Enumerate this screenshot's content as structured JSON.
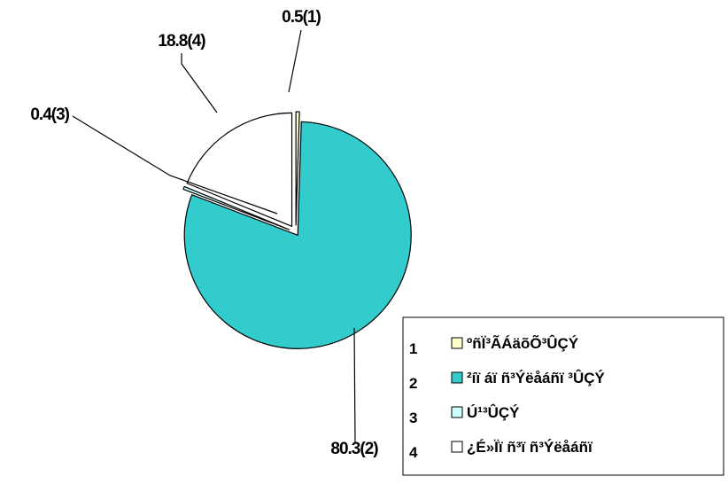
{
  "chart_data": {
    "type": "pie",
    "title": "",
    "start_angle_deg": 90,
    "direction": "clockwise",
    "exploded": true,
    "slices": [
      {
        "id": "1",
        "value": 0.5,
        "label": "0.5(1)",
        "legend": "ºñÏ³ÃÁäõÕ³ÛÇÝ",
        "color": "#ffffcc"
      },
      {
        "id": "2",
        "value": 80.3,
        "label": "80.3(2)",
        "legend": "²íï áï ñ³Ýëåáñï ³ÛÇÝ",
        "color": "#33cccc"
      },
      {
        "id": "3",
        "value": 0.4,
        "label": "0.4(3)",
        "legend": "Ú¹³ÛÇÝ",
        "color": "#ccffff"
      },
      {
        "id": "4",
        "value": 18.8,
        "label": "18.8(4)",
        "legend": "¿É»Ïï ñ³ï ñ³Ýëåáñï",
        "color": "#ffffff"
      }
    ],
    "legend_position": "bottom-right"
  }
}
